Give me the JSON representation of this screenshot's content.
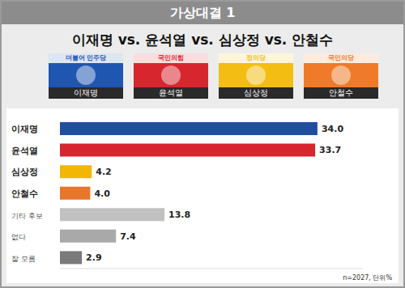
{
  "header": {
    "title": "가상대결 1",
    "subtitle": "이재명 vs. 윤석열 vs. 심상정 vs. 안철수",
    "candidates": [
      {
        "party": "더불어 민주당",
        "name": "이재명",
        "color": "#1f56b0"
      },
      {
        "party": "국민의힘",
        "name": "윤석열",
        "color": "#d8262f"
      },
      {
        "party": "정의당",
        "name": "심상정",
        "color": "#f3bd12"
      },
      {
        "party": "국민의당",
        "name": "안철수",
        "color": "#ee7a2a"
      }
    ]
  },
  "chart_data": {
    "type": "bar",
    "orientation": "horizontal",
    "categories": [
      "이재명",
      "윤석열",
      "심상정",
      "안철수",
      "기타 후보",
      "없다",
      "잘 모름"
    ],
    "values": [
      34.0,
      33.7,
      4.2,
      4.0,
      13.8,
      7.4,
      2.9
    ],
    "value_labels": [
      "34.0",
      "33.7",
      "4.2",
      "4.0",
      "13.8",
      "7.4",
      "2.9"
    ],
    "colors": [
      "#1f4e9e",
      "#d8242c",
      "#f2b705",
      "#e8762b",
      "#c2c1c1",
      "#a9a9a9",
      "#7a7a7a"
    ],
    "xlim": [
      0,
      40
    ],
    "data_labels": true,
    "tick_labels": "y",
    "grid": false
  },
  "note": "n=2027, 단위%"
}
